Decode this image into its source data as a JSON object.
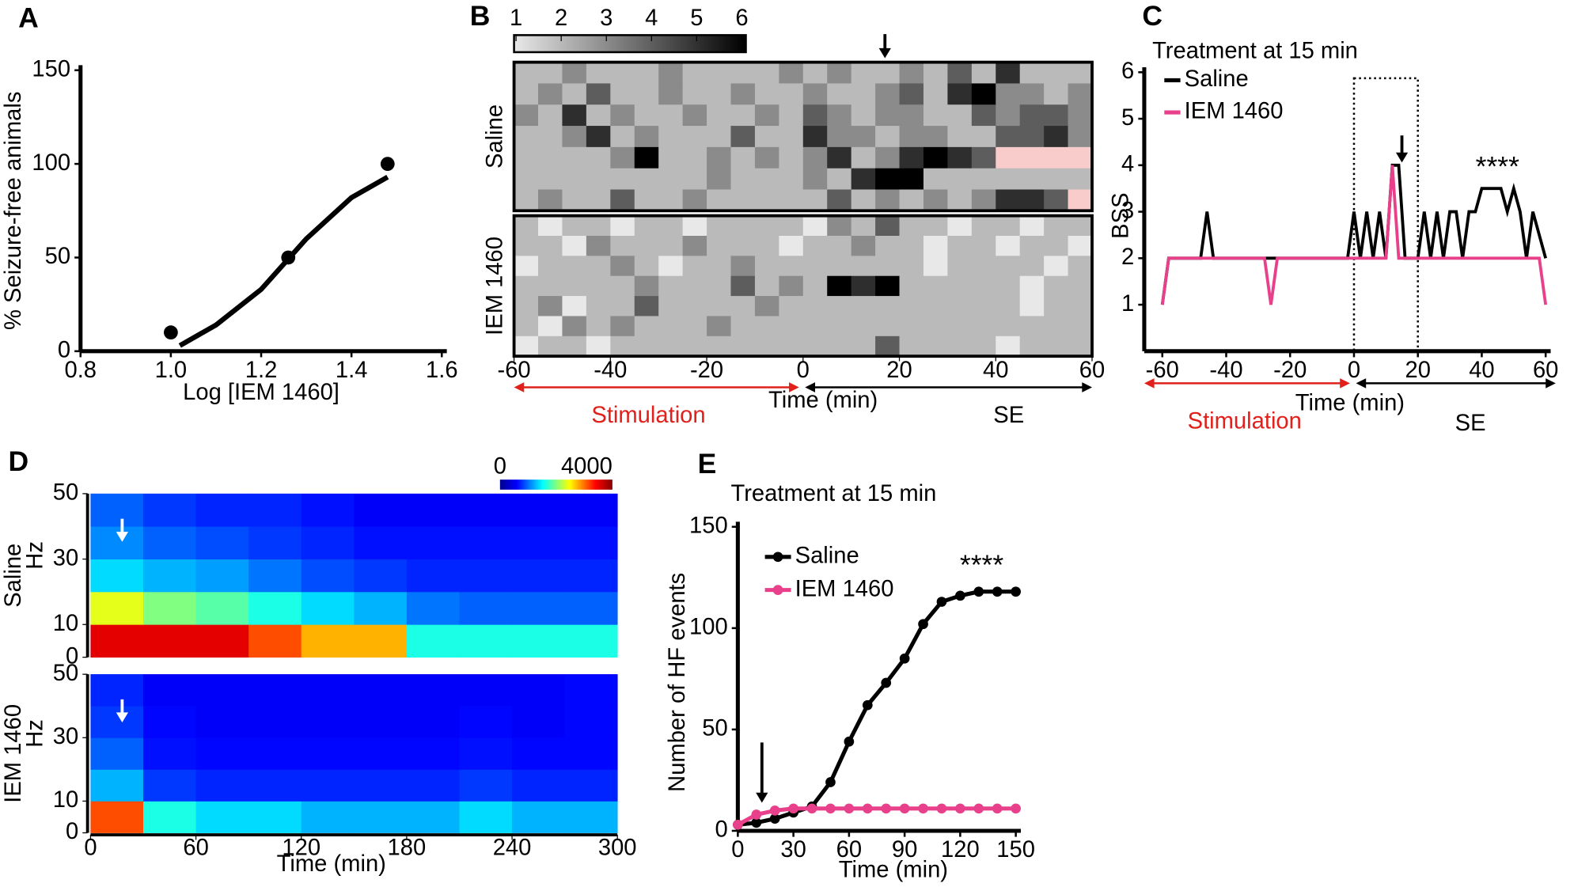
{
  "chart_data": [
    {
      "type": "scatter",
      "label": "A",
      "xlabel": "Log [IEM 1460]",
      "ylabel": "% Seizure-free animals",
      "xlim": [
        0.8,
        1.6
      ],
      "xticks": [
        0.8,
        {
          "value": 1.0,
          "label": "1.0"
        },
        1.2,
        1.4,
        1.6
      ],
      "ylim": [
        0,
        150
      ],
      "yticks": [
        0,
        50,
        100,
        150
      ],
      "series": [
        {
          "style": "points",
          "color": "#000000",
          "x": [
            1.0,
            1.26,
            1.48
          ],
          "values": [
            10,
            50,
            100
          ]
        },
        {
          "style": "line",
          "color": "#000000",
          "x": [
            1.02,
            1.1,
            1.2,
            1.3,
            1.4,
            1.48
          ],
          "values": [
            3,
            14,
            33,
            60,
            82,
            93
          ]
        }
      ]
    },
    {
      "type": "heatmap",
      "label": "B",
      "xlabel": "Time (min)",
      "xlim": [
        -60,
        60
      ],
      "xticks": [
        -60,
        -40,
        -20,
        0,
        20,
        40,
        60
      ],
      "clim": [
        1,
        6
      ],
      "cticks": [
        1,
        2,
        3,
        4,
        5,
        6
      ],
      "colors": [
        "#e8e8e8",
        "#000000"
      ],
      "missing_color": "#f9cccc",
      "arrow_x": 17,
      "annotations": [
        "Stimulation",
        "SE"
      ],
      "groups": [
        {
          "name": "Saline",
          "values": [
            [
              2,
              2,
              3,
              2,
              2,
              2,
              3,
              2,
              2,
              2,
              2,
              3,
              2,
              3,
              2,
              2,
              3,
              2,
              4,
              2,
              5,
              2,
              2,
              2
            ],
            [
              2,
              3,
              2,
              4,
              2,
              2,
              3,
              2,
              2,
              3,
              2,
              2,
              3,
              2,
              2,
              3,
              4,
              2,
              5,
              6,
              3,
              3,
              2,
              3
            ],
            [
              3,
              2,
              5,
              2,
              3,
              2,
              2,
              3,
              2,
              2,
              3,
              2,
              4,
              3,
              2,
              3,
              3,
              2,
              2,
              4,
              3,
              4,
              4,
              3
            ],
            [
              2,
              2,
              3,
              5,
              2,
              3,
              2,
              2,
              2,
              4,
              2,
              2,
              5,
              3,
              3,
              2,
              3,
              3,
              2,
              2,
              4,
              4,
              5,
              3
            ],
            [
              2,
              2,
              2,
              2,
              3,
              6,
              2,
              2,
              3,
              2,
              3,
              2,
              3,
              5,
              2,
              3,
              5,
              6,
              5,
              4,
              null,
              null,
              null,
              null
            ],
            [
              2,
              2,
              2,
              2,
              2,
              2,
              2,
              2,
              3,
              2,
              2,
              2,
              3,
              2,
              5,
              6,
              6,
              2,
              2,
              2,
              2,
              2,
              2,
              2
            ],
            [
              2,
              3,
              2,
              2,
              4,
              2,
              2,
              3,
              2,
              2,
              2,
              2,
              2,
              4,
              2,
              3,
              2,
              3,
              2,
              3,
              5,
              5,
              4,
              null
            ]
          ]
        },
        {
          "name": "IEM 1460",
          "values": [
            [
              2,
              1,
              2,
              2,
              1,
              2,
              2,
              1,
              2,
              2,
              2,
              2,
              1,
              3,
              2,
              4,
              2,
              2,
              1,
              2,
              2,
              1,
              2,
              2
            ],
            [
              2,
              2,
              1,
              3,
              2,
              2,
              2,
              3,
              2,
              2,
              2,
              1,
              2,
              2,
              3,
              2,
              2,
              1,
              2,
              2,
              1,
              2,
              2,
              1
            ],
            [
              1,
              2,
              2,
              2,
              3,
              2,
              1,
              2,
              2,
              3,
              2,
              2,
              2,
              2,
              2,
              2,
              2,
              1,
              2,
              2,
              2,
              2,
              1,
              2
            ],
            [
              2,
              2,
              2,
              2,
              2,
              3,
              2,
              2,
              2,
              4,
              2,
              3,
              2,
              6,
              5,
              6,
              2,
              2,
              2,
              2,
              2,
              1,
              2,
              2
            ],
            [
              2,
              3,
              1,
              2,
              2,
              4,
              2,
              2,
              2,
              2,
              3,
              2,
              2,
              2,
              2,
              2,
              2,
              2,
              2,
              2,
              2,
              1,
              2,
              2
            ],
            [
              2,
              1,
              3,
              2,
              3,
              2,
              2,
              2,
              3,
              2,
              2,
              2,
              2,
              2,
              2,
              2,
              2,
              2,
              2,
              2,
              2,
              2,
              2,
              2
            ],
            [
              1,
              2,
              2,
              1,
              2,
              2,
              2,
              2,
              2,
              2,
              2,
              2,
              2,
              2,
              2,
              4,
              2,
              2,
              2,
              2,
              1,
              2,
              2,
              2
            ]
          ]
        }
      ]
    },
    {
      "type": "line",
      "label": "C",
      "title": "Treatment at 15 min",
      "xlabel": "Time (min)",
      "ylabel": "BSS",
      "xlim": [
        -60,
        60
      ],
      "xticks": [
        -60,
        -40,
        -20,
        0,
        20,
        40,
        60
      ],
      "ylim": [
        0,
        6
      ],
      "yticks": [
        1,
        2,
        3,
        4,
        5,
        6
      ],
      "arrow_x": 15,
      "highlight_window": [
        0,
        20
      ],
      "annotations": [
        "****",
        "Stimulation",
        "SE"
      ],
      "series": [
        {
          "name": "Saline",
          "color": "#000000",
          "x": [
            -60,
            -58,
            -48,
            -46,
            -44,
            -2,
            0,
            2,
            4,
            6,
            8,
            10,
            12,
            14,
            16,
            18,
            20,
            22,
            24,
            26,
            28,
            30,
            32,
            34,
            36,
            38,
            40,
            42,
            44,
            46,
            48,
            50,
            52,
            54,
            56,
            60
          ],
          "values": [
            1,
            2,
            2,
            3,
            2,
            2,
            3,
            2,
            3,
            2,
            3,
            2,
            4,
            4,
            2,
            2,
            2,
            3,
            2,
            3,
            2,
            3,
            3,
            2,
            3,
            3,
            3.5,
            3.5,
            3.5,
            3.5,
            3,
            3.5,
            3,
            2,
            3,
            2
          ]
        },
        {
          "name": "IEM 1460",
          "color": "#e8408a",
          "x": [
            -60,
            -58,
            -28,
            -26,
            -24,
            10,
            12,
            14,
            58,
            60
          ],
          "values": [
            1,
            2,
            2,
            1,
            2,
            2,
            4,
            2,
            2,
            1
          ]
        }
      ]
    },
    {
      "type": "spectrogram",
      "label": "D",
      "xlabel": "Time (min)",
      "ylabel": "Hz",
      "xlim": [
        0,
        300
      ],
      "xticks": [
        0,
        60,
        120,
        180,
        240,
        300
      ],
      "ylim": [
        0,
        50
      ],
      "yticks": [
        0,
        10,
        30,
        50
      ],
      "clim": [
        0,
        4000
      ],
      "cticks": [
        0,
        4000
      ],
      "arrow_x": 18,
      "groups": [
        {
          "name": "Saline",
          "values": [
            [
              4000,
              4000,
              4000,
              3500,
              3000,
              3000,
              1500,
              1500,
              1500,
              1500
            ],
            [
              2500,
              2000,
              1800,
              1500,
              1200,
              1000,
              700,
              600,
              600,
              600
            ],
            [
              1200,
              1000,
              900,
              700,
              500,
              400,
              300,
              300,
              300,
              300
            ],
            [
              800,
              600,
              500,
              400,
              300,
              200,
              200,
              200,
              200,
              200
            ],
            [
              600,
              400,
              300,
              300,
              200,
              100,
              100,
              100,
              100,
              100
            ]
          ]
        },
        {
          "name": "IEM 1460",
          "values": [
            [
              3500,
              1500,
              1200,
              1200,
              1000,
              1000,
              1000,
              1200,
              1000,
              1000
            ],
            [
              1000,
              400,
              300,
              300,
              300,
              300,
              300,
              400,
              300,
              300
            ],
            [
              600,
              200,
              150,
              150,
              150,
              150,
              150,
              200,
              150,
              150
            ],
            [
              400,
              150,
              100,
              100,
              100,
              100,
              100,
              150,
              100,
              150
            ],
            [
              300,
              100,
              100,
              100,
              100,
              100,
              100,
              100,
              100,
              150
            ]
          ]
        }
      ]
    },
    {
      "type": "line",
      "label": "E",
      "title": "Treatment at 15 min",
      "xlabel": "Time (min)",
      "ylabel": "Number of HF events",
      "xlim": [
        0,
        150
      ],
      "xticks": [
        0,
        30,
        60,
        90,
        120,
        150
      ],
      "ylim": [
        0,
        150
      ],
      "yticks": [
        0,
        50,
        100,
        150
      ],
      "markers": true,
      "legend": "upper left",
      "arrow_x": 13,
      "annotations": [
        "****"
      ],
      "series": [
        {
          "name": "Saline",
          "color": "#000000",
          "x": [
            0,
            10,
            20,
            30,
            40,
            50,
            60,
            70,
            80,
            90,
            100,
            110,
            120,
            130,
            140,
            150
          ],
          "values": [
            3,
            4,
            6,
            9,
            12,
            24,
            44,
            62,
            73,
            85,
            102,
            113,
            116,
            118,
            118,
            118
          ]
        },
        {
          "name": "IEM 1460",
          "color": "#e8408a",
          "x": [
            0,
            10,
            20,
            30,
            40,
            50,
            60,
            70,
            80,
            90,
            100,
            110,
            120,
            130,
            140,
            150
          ],
          "values": [
            3,
            8,
            10,
            11,
            11,
            11,
            11,
            11,
            11,
            11,
            11,
            11,
            11,
            11,
            11,
            11
          ]
        }
      ]
    }
  ]
}
